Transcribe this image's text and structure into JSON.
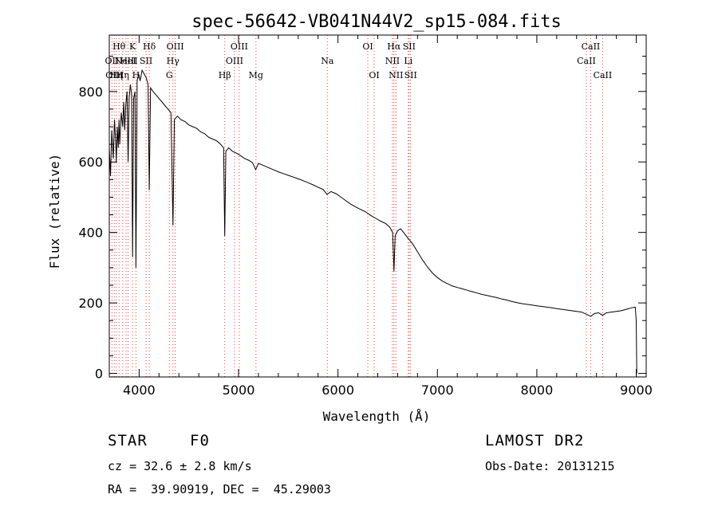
{
  "chart_data": {
    "type": "line",
    "title": "spec-56642-VB041N44V2_sp15-084.fits",
    "xlabel": "Wavelength (Å)",
    "ylabel": "Flux (relative)",
    "xlim": [
      3700,
      9100
    ],
    "ylim": [
      -10,
      960
    ],
    "x_ticks": [
      4000,
      5000,
      6000,
      7000,
      8000,
      9000
    ],
    "x_tick_labels": [
      "4000",
      "5000",
      "6000",
      "7000",
      "8000",
      "9000"
    ],
    "y_ticks": [
      0,
      200,
      400,
      600,
      800
    ],
    "y_tick_labels": [
      "0",
      "200",
      "400",
      "600",
      "800"
    ],
    "grid": false,
    "series": [
      {
        "points": [
          [
            3700,
            640
          ],
          [
            3712,
            560
          ],
          [
            3725,
            690
          ],
          [
            3740,
            610
          ],
          [
            3752,
            720
          ],
          [
            3765,
            650
          ],
          [
            3771,
            600
          ],
          [
            3780,
            700
          ],
          [
            3790,
            640
          ],
          [
            3798,
            720
          ],
          [
            3805,
            650
          ],
          [
            3820,
            740
          ],
          [
            3835,
            700
          ],
          [
            3845,
            770
          ],
          [
            3855,
            690
          ],
          [
            3865,
            760
          ],
          [
            3878,
            800
          ],
          [
            3889,
            600
          ],
          [
            3900,
            780
          ],
          [
            3912,
            820
          ],
          [
            3925,
            790
          ],
          [
            3934,
            330
          ],
          [
            3945,
            780
          ],
          [
            3958,
            800
          ],
          [
            3968,
            300
          ],
          [
            3980,
            830
          ],
          [
            3995,
            850
          ],
          [
            4010,
            830
          ],
          [
            4030,
            860
          ],
          [
            4050,
            850
          ],
          [
            4070,
            840
          ],
          [
            4090,
            820
          ],
          [
            4102,
            520
          ],
          [
            4115,
            810
          ],
          [
            4140,
            800
          ],
          [
            4170,
            790
          ],
          [
            4200,
            780
          ],
          [
            4230,
            770
          ],
          [
            4260,
            760
          ],
          [
            4290,
            750
          ],
          [
            4320,
            740
          ],
          [
            4340,
            420
          ],
          [
            4355,
            720
          ],
          [
            4385,
            730
          ],
          [
            4420,
            720
          ],
          [
            4460,
            715
          ],
          [
            4500,
            705
          ],
          [
            4540,
            700
          ],
          [
            4580,
            695
          ],
          [
            4620,
            685
          ],
          [
            4660,
            680
          ],
          [
            4700,
            670
          ],
          [
            4740,
            665
          ],
          [
            4780,
            660
          ],
          [
            4820,
            650
          ],
          [
            4850,
            640
          ],
          [
            4861,
            390
          ],
          [
            4872,
            630
          ],
          [
            4900,
            640
          ],
          [
            4940,
            630
          ],
          [
            4980,
            625
          ],
          [
            5020,
            618
          ],
          [
            5060,
            610
          ],
          [
            5100,
            605
          ],
          [
            5140,
            598
          ],
          [
            5172,
            578
          ],
          [
            5200,
            596
          ],
          [
            5250,
            590
          ],
          [
            5300,
            584
          ],
          [
            5350,
            578
          ],
          [
            5400,
            572
          ],
          [
            5450,
            567
          ],
          [
            5500,
            562
          ],
          [
            5550,
            557
          ],
          [
            5600,
            552
          ],
          [
            5650,
            547
          ],
          [
            5700,
            541
          ],
          [
            5750,
            535
          ],
          [
            5800,
            528
          ],
          [
            5850,
            522
          ],
          [
            5890,
            508
          ],
          [
            5930,
            516
          ],
          [
            5980,
            510
          ],
          [
            6030,
            500
          ],
          [
            6080,
            490
          ],
          [
            6130,
            480
          ],
          [
            6180,
            472
          ],
          [
            6230,
            465
          ],
          [
            6280,
            458
          ],
          [
            6330,
            448
          ],
          [
            6380,
            440
          ],
          [
            6430,
            432
          ],
          [
            6480,
            425
          ],
          [
            6520,
            415
          ],
          [
            6550,
            400
          ],
          [
            6563,
            290
          ],
          [
            6575,
            390
          ],
          [
            6600,
            405
          ],
          [
            6630,
            410
          ],
          [
            6660,
            400
          ],
          [
            6700,
            385
          ],
          [
            6750,
            368
          ],
          [
            6800,
            345
          ],
          [
            6850,
            322
          ],
          [
            6900,
            302
          ],
          [
            6950,
            285
          ],
          [
            7000,
            272
          ],
          [
            7050,
            262
          ],
          [
            7100,
            255
          ],
          [
            7150,
            248
          ],
          [
            7200,
            244
          ],
          [
            7250,
            240
          ],
          [
            7300,
            236
          ],
          [
            7350,
            232
          ],
          [
            7400,
            228
          ],
          [
            7450,
            224
          ],
          [
            7500,
            221
          ],
          [
            7550,
            218
          ],
          [
            7600,
            215
          ],
          [
            7650,
            211
          ],
          [
            7700,
            208
          ],
          [
            7750,
            204
          ],
          [
            7800,
            201
          ],
          [
            7850,
            198
          ],
          [
            7900,
            196
          ],
          [
            7950,
            194
          ],
          [
            8000,
            192
          ],
          [
            8050,
            190
          ],
          [
            8100,
            188
          ],
          [
            8150,
            186
          ],
          [
            8200,
            184
          ],
          [
            8250,
            182
          ],
          [
            8300,
            180
          ],
          [
            8350,
            178
          ],
          [
            8400,
            176
          ],
          [
            8450,
            174
          ],
          [
            8498,
            168
          ],
          [
            8542,
            162
          ],
          [
            8580,
            170
          ],
          [
            8620,
            172
          ],
          [
            8662,
            165
          ],
          [
            8700,
            172
          ],
          [
            8750,
            174
          ],
          [
            8800,
            176
          ],
          [
            8850,
            178
          ],
          [
            8900,
            182
          ],
          [
            8950,
            186
          ],
          [
            8990,
            188
          ],
          [
            9000,
            150
          ],
          [
            9005,
            0
          ]
        ]
      }
    ],
    "line_markers": [
      {
        "x": 3727,
        "label": "OII",
        "row": 1
      },
      {
        "x": 3750,
        "label": "OIII",
        "row": 2
      },
      {
        "x": 3771,
        "label": "Hη",
        "row": 2
      },
      {
        "x": 3798,
        "label": "Hθ",
        "row": 0
      },
      {
        "x": 3835,
        "label": "Hη",
        "row": 2
      },
      {
        "x": 3869,
        "label": "NeIII",
        "row": 1
      },
      {
        "x": 3889,
        "label": "HeI",
        "row": 1
      },
      {
        "x": 3934,
        "label": "K",
        "row": 0
      },
      {
        "x": 3968,
        "label": "H",
        "row": 2
      },
      {
        "x": 4070,
        "label": "SII",
        "row": 1
      },
      {
        "x": 4102,
        "label": "Hδ",
        "row": 0
      },
      {
        "x": 4304,
        "label": "G",
        "row": 2
      },
      {
        "x": 4340,
        "label": "Hγ",
        "row": 1
      },
      {
        "x": 4363,
        "label": "OIII",
        "row": 0
      },
      {
        "x": 4861,
        "label": "Hβ",
        "row": 2
      },
      {
        "x": 4959,
        "label": "OIII",
        "row": 1
      },
      {
        "x": 5007,
        "label": "OIII",
        "row": 0
      },
      {
        "x": 5175,
        "label": "Mg",
        "row": 2
      },
      {
        "x": 5893,
        "label": "Na",
        "row": 1
      },
      {
        "x": 6300,
        "label": "OI",
        "row": 0
      },
      {
        "x": 6364,
        "label": "OI",
        "row": 2
      },
      {
        "x": 6548,
        "label": "NII",
        "row": 1
      },
      {
        "x": 6563,
        "label": "Hα",
        "row": 0
      },
      {
        "x": 6583,
        "label": "NII",
        "row": 2
      },
      {
        "x": 6707,
        "label": "Li",
        "row": 1
      },
      {
        "x": 6716,
        "label": "SII",
        "row": 0
      },
      {
        "x": 6731,
        "label": "SII",
        "row": 2
      },
      {
        "x": 8498,
        "label": "CaII",
        "row": 1
      },
      {
        "x": 8542,
        "label": "CaII",
        "row": 0
      },
      {
        "x": 8662,
        "label": "CaII",
        "row": 2
      }
    ]
  },
  "footer": {
    "object_type": "STAR",
    "subclass": "F0",
    "survey": "LAMOST DR2",
    "redshift": "cz = 32.6 ± 2.8 km/s",
    "obs_date": "Obs-Date: 20131215",
    "coordinates": "RA =  39.90919, DEC =  45.29003"
  },
  "colors": {
    "line": "#000000",
    "marker": "#ff3333",
    "background": "#ffffff"
  }
}
